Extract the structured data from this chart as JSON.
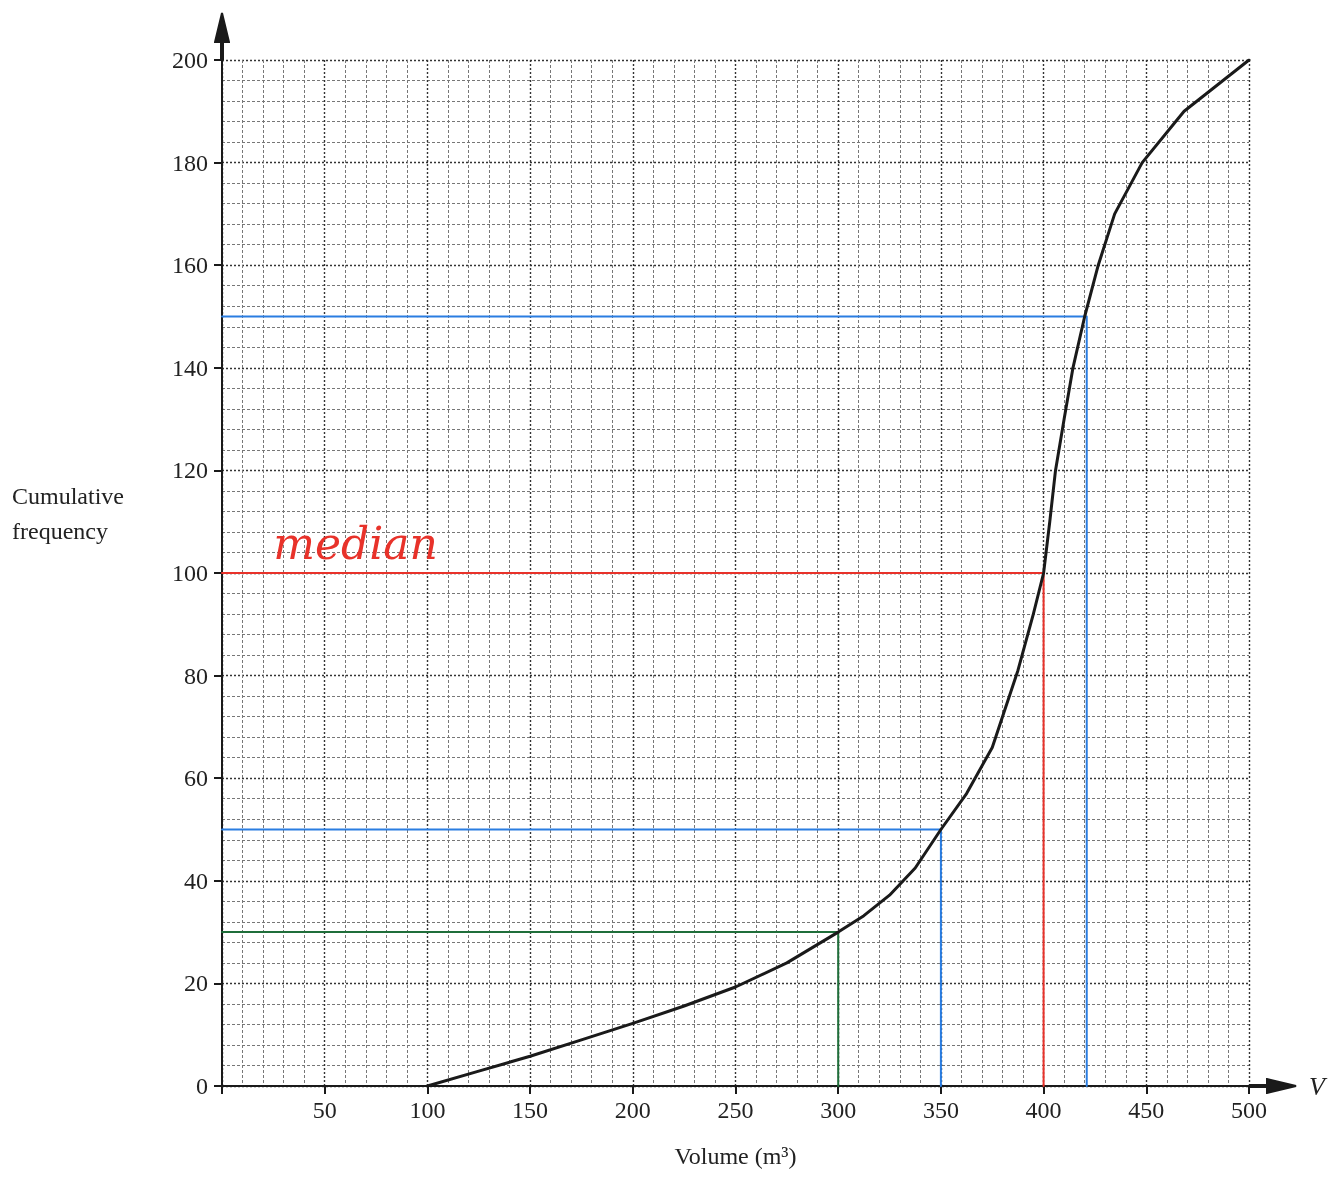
{
  "chart_data": {
    "type": "line",
    "xlabel": "Volume (m³)",
    "ylabel": "Cumulative frequency",
    "annotations": [
      {
        "text": "median",
        "x": 65,
        "y": 100
      },
      "V"
    ],
    "series": [
      {
        "color": "#1a1a1a",
        "x": [
          100,
          125,
          150,
          175,
          200,
          225,
          250,
          275,
          300,
          312.5,
          325,
          337.5,
          350,
          362.5,
          375,
          387.5,
          395,
          400,
          403,
          405.8,
          410,
          414.3,
          420,
          426.6,
          434.6,
          448,
          468.4,
          500
        ],
        "values": [
          0,
          2.9,
          5.8,
          9,
          12.2,
          15.6,
          19.3,
          24,
          30,
          33.2,
          37.2,
          42.5,
          50,
          57,
          66,
          81,
          92,
          100,
          110,
          120,
          130,
          140,
          150,
          160,
          170,
          180,
          190,
          200
        ]
      },
      {
        "color": "#2a7de1",
        "x": [
          0,
          421,
          421
        ],
        "values": [
          150,
          150,
          0
        ]
      },
      {
        "color": "#2a7de1",
        "x": [
          0,
          350,
          350
        ],
        "values": [
          50,
          50,
          0
        ]
      },
      {
        "color": "#e8322a",
        "x": [
          0,
          400,
          400
        ],
        "values": [
          100,
          100,
          0
        ]
      },
      {
        "color": "#1f6e3a",
        "x": [
          0,
          300,
          300
        ],
        "values": [
          30,
          30,
          0
        ]
      }
    ],
    "xlim": [
      0,
      500
    ],
    "ylim": [
      0,
      200
    ],
    "xticks": [
      {
        "value": 0,
        "label": null
      },
      50,
      100,
      150,
      200,
      250,
      300,
      350,
      400,
      450,
      500
    ],
    "yticks": [
      0,
      20,
      40,
      60,
      80,
      100,
      120,
      140,
      160,
      180,
      200
    ],
    "grid": true,
    "marker": "none",
    "line_style": "solid"
  }
}
